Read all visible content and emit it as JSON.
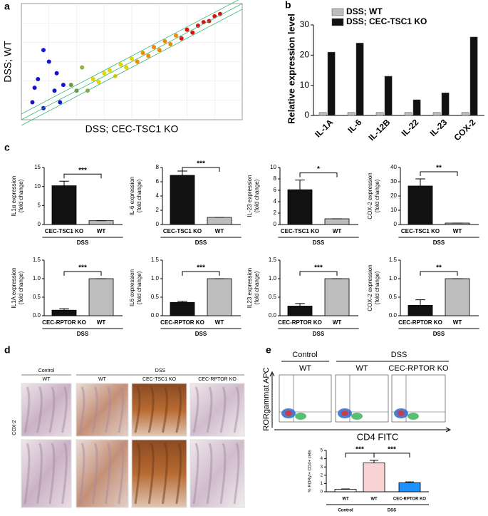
{
  "chart_data": [
    {
      "type": "scatter",
      "x_label": "DSS; CEC-TSC1 KO",
      "y_label": "DSS; WT",
      "x": [
        1,
        1.5,
        2,
        2.5,
        3,
        3.2,
        3.5,
        2,
        1.2,
        3.8,
        4.5,
        5,
        5.5,
        6,
        6.5,
        7,
        7.5,
        8,
        8.5,
        9,
        9.5,
        10,
        10.5,
        11,
        11.5,
        12,
        12.5,
        13,
        13.5,
        14,
        14.5,
        15,
        15.5,
        16,
        16.5,
        17,
        17.5,
        18
      ],
      "y": [
        3,
        7,
        2,
        10,
        5,
        8,
        3,
        12,
        5.5,
        6,
        6,
        5,
        9,
        5,
        7,
        6.5,
        8,
        8.5,
        7.5,
        9.5,
        9,
        10.5,
        10,
        11.5,
        11,
        12.5,
        12,
        13.5,
        13,
        14.5,
        14,
        15.5,
        15,
        16.2,
        16.8,
        17,
        17.8,
        18.2
      ],
      "colors": [
        "#1414d2",
        "#1414d2",
        "#1414d2",
        "#1414d2",
        "#1414d2",
        "#1414d2",
        "#1414d2",
        "#1414d2",
        "#1414d2",
        "#1414d2",
        "#6f9a3c",
        "#6f9a3c",
        "#8fb23a",
        "#8fb23a",
        "#e6d400",
        "#e6d400",
        "#e6d400",
        "#e6d400",
        "#e6d400",
        "#e6d400",
        "#e6d400",
        "#e6d400",
        "#f08a00",
        "#f08a00",
        "#f08a00",
        "#f08a00",
        "#f08a00",
        "#f08a00",
        "#f08a00",
        "#f08a00",
        "#e01010",
        "#e01010",
        "#e01010",
        "#e01010",
        "#e01010",
        "#e01010",
        "#e01010",
        "#e01010"
      ],
      "xlim": [
        0,
        20
      ],
      "ylim": [
        0,
        20
      ]
    },
    {
      "type": "grouped-bar",
      "y_label": "Relative expression level",
      "categories": [
        "IL-1A",
        "IL-6",
        "IL-12B",
        "IL-22",
        "IL-23",
        "COX-2"
      ],
      "series": [
        {
          "name": "DSS; WT",
          "color": "#bdbdbd",
          "values": [
            1,
            1,
            1,
            1,
            1,
            1
          ]
        },
        {
          "name": "DSS; CEC-TSC1 KO",
          "color": "#111111",
          "values": [
            21,
            24,
            13,
            5.2,
            7.5,
            26
          ]
        }
      ],
      "ylim": [
        0,
        30
      ],
      "yticks": [
        0,
        10,
        20,
        30
      ],
      "legend": "upper left"
    },
    {
      "type": "bar",
      "y_label": [
        "IL1α expression",
        "(fold change)"
      ],
      "categories": [
        "CEC-TSC1 KO",
        "WT"
      ],
      "values": [
        10.2,
        1.0
      ],
      "errors": [
        1.2,
        0
      ],
      "colors": [
        "#111111",
        "#bdbdbd"
      ],
      "ylim": [
        0,
        15
      ],
      "yticks": [
        0,
        5,
        10,
        15
      ],
      "significance": [
        "***"
      ],
      "group_labels": [
        "DSS"
      ]
    },
    {
      "type": "bar",
      "y_label": [
        "IL-6 expression",
        "(fold change)"
      ],
      "categories": [
        "CEC-TSC1 KO",
        "WT"
      ],
      "values": [
        6.9,
        1.0
      ],
      "errors": [
        0.6,
        0
      ],
      "colors": [
        "#111111",
        "#bdbdbd"
      ],
      "ylim": [
        0,
        8
      ],
      "yticks": [
        0,
        2,
        4,
        6,
        8
      ],
      "significance": [
        "***"
      ],
      "group_labels": [
        "DSS"
      ]
    },
    {
      "type": "bar",
      "y_label": [
        "IL-23 expression",
        "(fold change)"
      ],
      "categories": [
        "CEC-TSC1 KO",
        "WT"
      ],
      "values": [
        6.1,
        1.0
      ],
      "errors": [
        1.7,
        0
      ],
      "colors": [
        "#111111",
        "#bdbdbd"
      ],
      "ylim": [
        0,
        10
      ],
      "yticks": [
        0,
        2,
        4,
        6,
        8,
        10
      ],
      "significance": [
        "*"
      ],
      "group_labels": [
        "DSS"
      ]
    },
    {
      "type": "bar",
      "y_label": [
        "COX-2 expression",
        "(fold change)"
      ],
      "categories": [
        "CEC-TSC1 KO",
        "WT"
      ],
      "values": [
        27,
        1.0
      ],
      "errors": [
        5,
        0
      ],
      "colors": [
        "#111111",
        "#bdbdbd"
      ],
      "ylim": [
        0,
        40
      ],
      "yticks": [
        0,
        10,
        20,
        30,
        40
      ],
      "significance": [
        "**"
      ],
      "group_labels": [
        "DSS"
      ]
    },
    {
      "type": "bar",
      "y_label": [
        "IL1A expression",
        "(fold change)"
      ],
      "categories": [
        "CEC-RPTOR KO",
        "WT"
      ],
      "values": [
        0.15,
        1.0
      ],
      "errors": [
        0.04,
        0
      ],
      "colors": [
        "#111111",
        "#bdbdbd"
      ],
      "ylim": [
        0,
        1.5
      ],
      "yticks": [
        {
          "value": 0,
          "label": "0.0"
        },
        0.5,
        {
          "value": 1,
          "label": "1.0"
        },
        1.5
      ],
      "significance": [
        "***"
      ],
      "group_labels": [
        "DSS"
      ]
    },
    {
      "type": "bar",
      "y_label": [
        "IL6 expression",
        "(fold change)"
      ],
      "categories": [
        "CEC-RPTOR KO",
        "WT"
      ],
      "values": [
        0.36,
        1.0
      ],
      "errors": [
        0.03,
        0
      ],
      "colors": [
        "#111111",
        "#bdbdbd"
      ],
      "ylim": [
        0,
        1.5
      ],
      "yticks": [
        {
          "value": 0,
          "label": "0.0"
        },
        0.5,
        {
          "value": 1,
          "label": "1.0"
        },
        1.5
      ],
      "significance": [
        "***"
      ],
      "group_labels": [
        "DSS"
      ]
    },
    {
      "type": "bar",
      "y_label": [
        "IL23 expression",
        "(fold change)"
      ],
      "categories": [
        "CEC-RPTOR KO",
        "WT"
      ],
      "values": [
        0.26,
        1.0
      ],
      "errors": [
        0.07,
        0
      ],
      "colors": [
        "#111111",
        "#bdbdbd"
      ],
      "ylim": [
        0,
        1.5
      ],
      "yticks": [
        {
          "value": 0,
          "label": "0.0"
        },
        0.5,
        {
          "value": 1,
          "label": "1.0"
        },
        1.5
      ],
      "significance": [
        "***"
      ],
      "group_labels": [
        "DSS"
      ]
    },
    {
      "type": "bar",
      "y_label": [
        "COX-2 expression",
        "(fold change)"
      ],
      "categories": [
        "CEC-RPTOR KO",
        "WT"
      ],
      "values": [
        0.28,
        1.0
      ],
      "errors": [
        0.15,
        0
      ],
      "colors": [
        "#111111",
        "#bdbdbd"
      ],
      "ylim": [
        0,
        1.5
      ],
      "yticks": [
        {
          "value": 0,
          "label": "0.0"
        },
        0.5,
        {
          "value": 1,
          "label": "1.0"
        },
        1.5
      ],
      "significance": [
        "**"
      ],
      "group_labels": [
        "DSS"
      ]
    },
    {
      "type": "bar",
      "y_label": [
        "% RORγt+ CD4+ cells"
      ],
      "categories": [
        "WT",
        "WT",
        "CEC-RPTOR KO"
      ],
      "values": [
        0.3,
        3.5,
        1.1
      ],
      "errors": [
        0.05,
        0.3,
        0.1
      ],
      "colors": [
        "#ffffff",
        "#f9d3d3",
        "#1e90ff"
      ],
      "ylim": [
        0,
        5
      ],
      "yticks": [
        0,
        1,
        2,
        3,
        4,
        5
      ],
      "significance": [
        "***",
        "***"
      ],
      "group_labels": [
        "Control",
        "DSS"
      ]
    }
  ],
  "figure": {
    "panel_labels": [
      "a",
      "b",
      "c",
      "d",
      "e"
    ],
    "panel_d": {
      "group_headers": [
        "Control",
        "DSS"
      ],
      "columns": [
        "WT",
        "WT",
        "CEC-TSC1 KO",
        "CEC-RPTOR KO"
      ],
      "row_label": "COX-2"
    },
    "panel_e": {
      "group_headers": [
        "Control",
        "DSS"
      ],
      "columns": [
        "WT",
        "WT",
        "CEC-RPTOR KO"
      ],
      "y_label": "RORgammat APC",
      "x_label": "CD4 FITC"
    }
  }
}
